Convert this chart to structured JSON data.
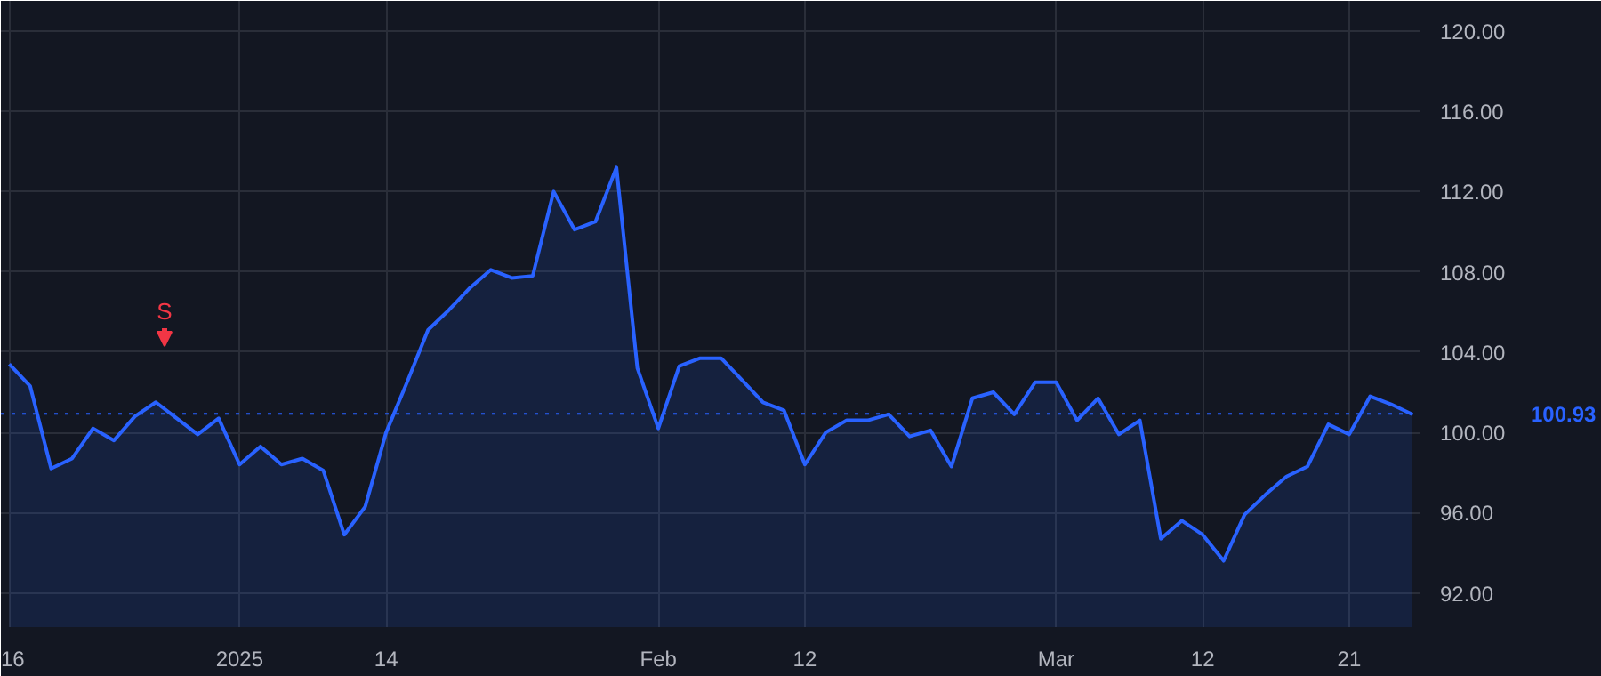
{
  "chart_data": {
    "type": "area",
    "categories": [
      "16",
      null,
      null,
      null,
      null,
      null,
      null,
      null,
      null,
      null,
      null,
      "2025",
      null,
      null,
      null,
      null,
      null,
      null,
      "14",
      null,
      null,
      null,
      null,
      null,
      null,
      null,
      null,
      null,
      null,
      null,
      null,
      "Feb",
      null,
      null,
      null,
      null,
      null,
      null,
      "12",
      null,
      null,
      null,
      null,
      null,
      null,
      null,
      null,
      null,
      null,
      null,
      "Mar",
      null,
      null,
      null,
      null,
      null,
      null,
      "12",
      null,
      null,
      null,
      null,
      null,
      null,
      "21",
      null,
      null,
      null
    ],
    "series": [
      {
        "color": "#2962ff",
        "values": [
          103.4,
          102.3,
          98.2,
          98.7,
          100.2,
          99.6,
          100.8,
          101.5,
          100.7,
          99.9,
          100.7,
          98.4,
          99.3,
          98.4,
          98.7,
          98.1,
          94.9,
          96.3,
          100.0,
          102.5,
          105.1,
          106.1,
          107.2,
          108.1,
          107.7,
          107.8,
          112.0,
          110.1,
          110.5,
          113.2,
          103.2,
          100.2,
          103.3,
          103.7,
          103.7,
          102.6,
          101.5,
          101.1,
          98.4,
          100.0,
          100.6,
          100.6,
          100.9,
          99.8,
          100.1,
          98.3,
          101.7,
          102.0,
          100.9,
          102.5,
          102.5,
          100.6,
          101.7,
          99.9,
          100.6,
          94.7,
          95.6,
          94.9,
          93.6,
          95.9,
          96.9,
          97.8,
          98.3,
          100.4,
          99.9,
          101.8,
          101.4,
          100.9
        ]
      }
    ],
    "ylim": [
      90.3,
      121.5
    ],
    "yticks": [
      {
        "value": 92,
        "label": "92.00"
      },
      {
        "value": 96,
        "label": "96.00"
      },
      {
        "value": 100,
        "label": "100.00"
      },
      {
        "value": 104,
        "label": "104.00"
      },
      {
        "value": 108,
        "label": "108.00"
      },
      {
        "value": 112,
        "label": "112.00"
      },
      {
        "value": 116,
        "label": "116.00"
      },
      {
        "value": 120,
        "label": "120.00"
      }
    ],
    "ref_lines": [
      {
        "axis": "y",
        "value": 100.93,
        "label": "100.93",
        "color": "#2962ff",
        "line_style": "dotted"
      }
    ],
    "annotations": [
      "S"
    ],
    "grid": true
  }
}
